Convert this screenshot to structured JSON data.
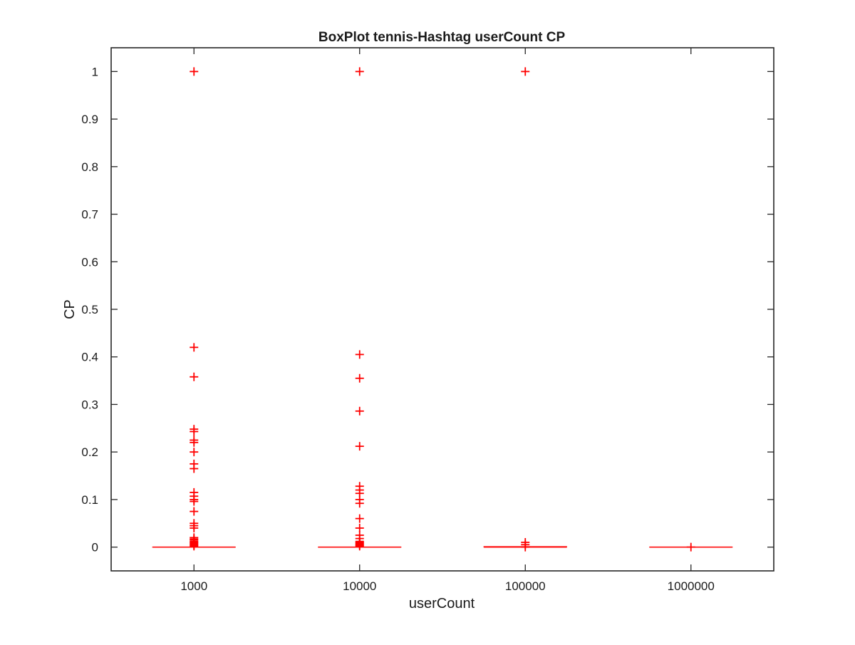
{
  "chart_data": {
    "type": "box",
    "title": "BoxPlot tennis-Hashtag userCount CP",
    "xlabel": "userCount",
    "ylabel": "CP",
    "categories": [
      "1000",
      "10000",
      "100000",
      "1000000"
    ],
    "ylim": [
      -0.05,
      1.05
    ],
    "yticks": [
      0,
      0.1,
      0.2,
      0.3,
      0.4,
      0.5,
      0.6,
      0.7,
      0.8,
      0.9,
      1
    ],
    "ytick_labels": [
      "0",
      "0.1",
      "0.2",
      "0.3",
      "0.4",
      "0.5",
      "0.6",
      "0.7",
      "0.8",
      "0.9",
      "1"
    ],
    "grid": false,
    "box_color": "#ff0000",
    "axis_color": "#262626",
    "boxes": [
      {
        "category": "1000",
        "q1": 0,
        "median": 0,
        "q3": 0,
        "whisker_low": 0,
        "whisker_high": 0,
        "outliers": [
          1,
          0.42,
          0.358,
          0.248,
          0.243,
          0.225,
          0.22,
          0.2,
          0.175,
          0.165,
          0.115,
          0.107,
          0.1,
          0.096,
          0.075,
          0.05,
          0.045,
          0.04,
          0.02,
          0.017,
          0.015,
          0.012,
          0.01,
          0.008,
          0.006,
          0.004,
          0.002
        ]
      },
      {
        "category": "10000",
        "q1": 0,
        "median": 0,
        "q3": 0,
        "whisker_low": 0,
        "whisker_high": 0,
        "outliers": [
          1,
          0.405,
          0.355,
          0.286,
          0.212,
          0.128,
          0.12,
          0.113,
          0.1,
          0.092,
          0.06,
          0.04,
          0.025,
          0.018,
          0.012,
          0.01,
          0.008,
          0.006,
          0.004,
          0.002
        ]
      },
      {
        "category": "100000",
        "q1": 0,
        "median": 0,
        "q3": 0.001,
        "whisker_low": 0,
        "whisker_high": 0.001,
        "outliers": [
          1,
          0.01,
          0.005,
          0
        ]
      },
      {
        "category": "1000000",
        "q1": 0,
        "median": 0,
        "q3": 0,
        "whisker_low": 0,
        "whisker_high": 0,
        "outliers": [
          0
        ]
      }
    ]
  }
}
